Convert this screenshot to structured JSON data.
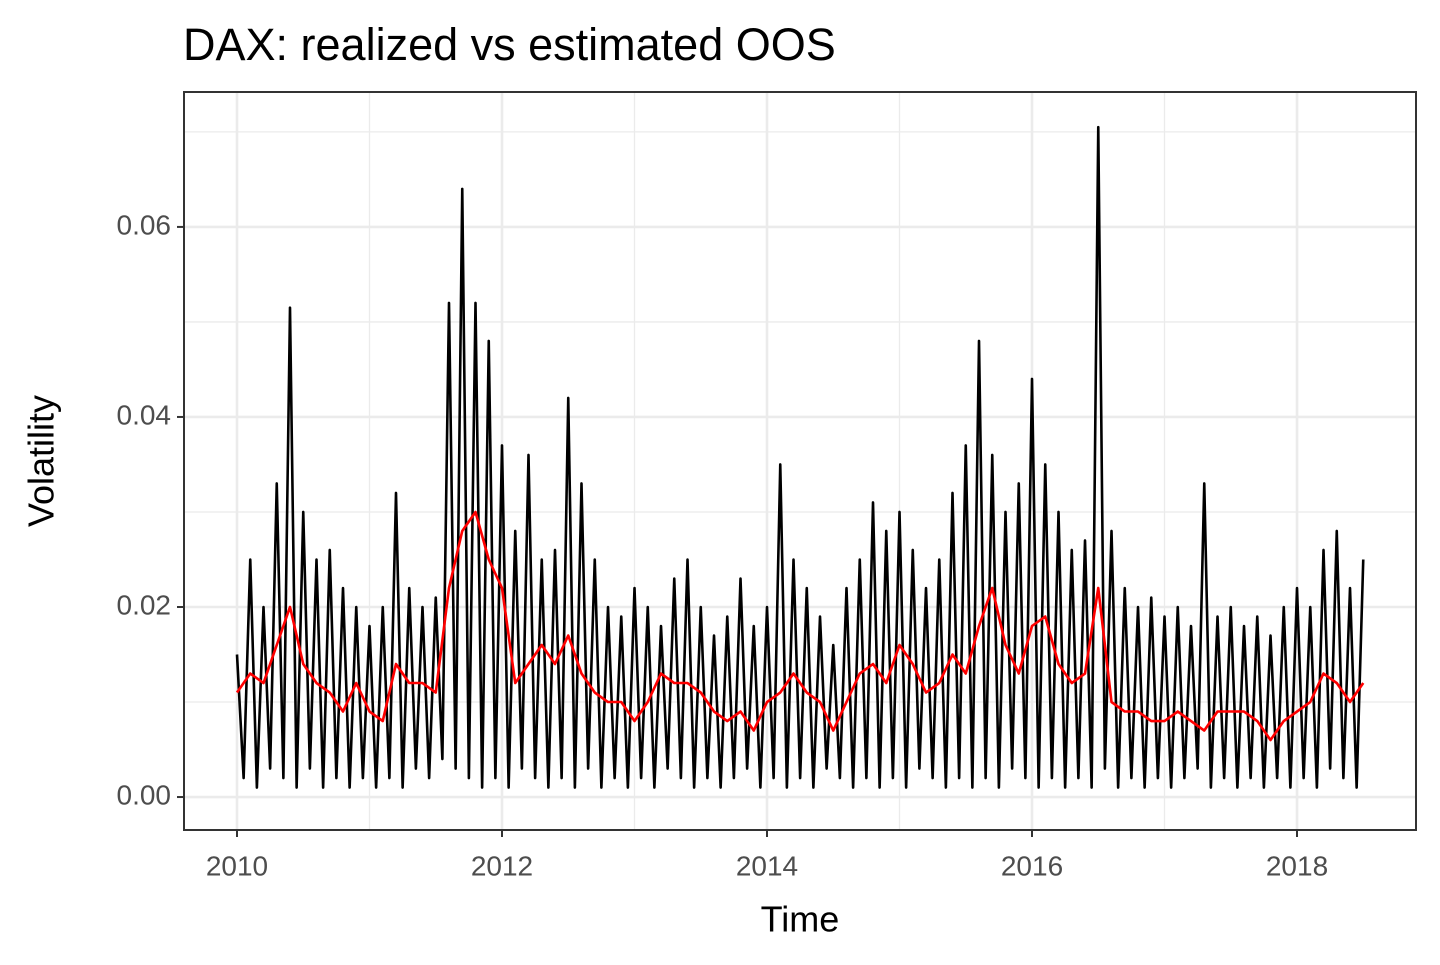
{
  "chart_data": {
    "type": "line",
    "title": "DAX: realized vs estimated OOS",
    "xlabel": "Time",
    "ylabel": "Volatility",
    "xlim": [
      2009.6,
      2018.898
    ],
    "ylim": [
      -0.00347,
      0.0742
    ],
    "xticks": [
      2010,
      2012,
      2014,
      2016,
      2018
    ],
    "yticks": [
      {
        "value": 0,
        "label": "0.00"
      },
      {
        "value": 0.02,
        "label": "0.02"
      },
      {
        "value": 0.04,
        "label": "0.04"
      },
      {
        "value": 0.06,
        "label": "0.06"
      }
    ],
    "xminorticks": [
      2011,
      2013,
      2015,
      2017
    ],
    "yminorticks": [
      0.01,
      0.03,
      0.05,
      0.07
    ],
    "grid": true,
    "series": [
      {
        "color": "#000000",
        "x": [
          2010,
          2010.05,
          2010.1,
          2010.15,
          2010.2,
          2010.25,
          2010.3,
          2010.35,
          2010.4,
          2010.45,
          2010.5,
          2010.55,
          2010.6,
          2010.65,
          2010.7,
          2010.75,
          2010.8,
          2010.85,
          2010.9,
          2010.95,
          2011,
          2011.05,
          2011.1,
          2011.15,
          2011.2,
          2011.25,
          2011.3,
          2011.35,
          2011.4,
          2011.45,
          2011.5,
          2011.55,
          2011.6,
          2011.65,
          2011.7,
          2011.75,
          2011.8,
          2011.85,
          2011.9,
          2011.95,
          2012,
          2012.05,
          2012.1,
          2012.15,
          2012.2,
          2012.25,
          2012.3,
          2012.35,
          2012.4,
          2012.45,
          2012.5,
          2012.55,
          2012.6,
          2012.65,
          2012.7,
          2012.75,
          2012.8,
          2012.85,
          2012.9,
          2012.95,
          2013,
          2013.05,
          2013.1,
          2013.15,
          2013.2,
          2013.25,
          2013.3,
          2013.35,
          2013.4,
          2013.45,
          2013.5,
          2013.55,
          2013.6,
          2013.65,
          2013.7,
          2013.75,
          2013.8,
          2013.85,
          2013.9,
          2013.95,
          2014,
          2014.05,
          2014.1,
          2014.15,
          2014.2,
          2014.25,
          2014.3,
          2014.35,
          2014.4,
          2014.45,
          2014.5,
          2014.55,
          2014.6,
          2014.65,
          2014.7,
          2014.75,
          2014.8,
          2014.85,
          2014.9,
          2014.95,
          2015,
          2015.05,
          2015.1,
          2015.15,
          2015.2,
          2015.25,
          2015.3,
          2015.35,
          2015.4,
          2015.45,
          2015.5,
          2015.55,
          2015.6,
          2015.65,
          2015.7,
          2015.75,
          2015.8,
          2015.85,
          2015.9,
          2015.95,
          2016,
          2016.05,
          2016.1,
          2016.15,
          2016.2,
          2016.25,
          2016.3,
          2016.35,
          2016.4,
          2016.45,
          2016.5,
          2016.55,
          2016.6,
          2016.65,
          2016.7,
          2016.75,
          2016.8,
          2016.85,
          2016.9,
          2016.95,
          2017,
          2017.05,
          2017.1,
          2017.15,
          2017.2,
          2017.25,
          2017.3,
          2017.35,
          2017.4,
          2017.45,
          2017.5,
          2017.55,
          2017.6,
          2017.65,
          2017.7,
          2017.75,
          2017.8,
          2017.85,
          2017.9,
          2017.95,
          2018,
          2018.05,
          2018.1,
          2018.15,
          2018.2,
          2018.25,
          2018.3,
          2018.35,
          2018.4,
          2018.45,
          2018.5
        ],
        "values": [
          0.015,
          0.002,
          0.025,
          0.001,
          0.02,
          0.003,
          0.033,
          0.002,
          0.0515,
          0.001,
          0.03,
          0.003,
          0.025,
          0.001,
          0.026,
          0.002,
          0.022,
          0.001,
          0.02,
          0.002,
          0.018,
          0.001,
          0.02,
          0.002,
          0.032,
          0.001,
          0.022,
          0.003,
          0.02,
          0.002,
          0.021,
          0.004,
          0.052,
          0.003,
          0.064,
          0.002,
          0.052,
          0.001,
          0.048,
          0.002,
          0.037,
          0.001,
          0.028,
          0.003,
          0.036,
          0.002,
          0.025,
          0.001,
          0.026,
          0.002,
          0.042,
          0.001,
          0.033,
          0.003,
          0.025,
          0.001,
          0.02,
          0.002,
          0.019,
          0.001,
          0.022,
          0.002,
          0.02,
          0.001,
          0.018,
          0.003,
          0.023,
          0.002,
          0.025,
          0.001,
          0.02,
          0.002,
          0.017,
          0.001,
          0.019,
          0.002,
          0.023,
          0.003,
          0.018,
          0.001,
          0.02,
          0.002,
          0.035,
          0.001,
          0.025,
          0.002,
          0.022,
          0.001,
          0.019,
          0.003,
          0.016,
          0.002,
          0.022,
          0.001,
          0.025,
          0.002,
          0.031,
          0.001,
          0.028,
          0.002,
          0.03,
          0.001,
          0.026,
          0.003,
          0.022,
          0.002,
          0.025,
          0.001,
          0.032,
          0.002,
          0.037,
          0.001,
          0.048,
          0.002,
          0.036,
          0.001,
          0.03,
          0.003,
          0.033,
          0.002,
          0.044,
          0.001,
          0.035,
          0.002,
          0.03,
          0.001,
          0.026,
          0.002,
          0.027,
          0.001,
          0.0705,
          0.003,
          0.028,
          0.001,
          0.022,
          0.002,
          0.02,
          0.001,
          0.021,
          0.002,
          0.019,
          0.001,
          0.02,
          0.002,
          0.018,
          0.003,
          0.033,
          0.001,
          0.019,
          0.002,
          0.02,
          0.001,
          0.018,
          0.002,
          0.019,
          0.001,
          0.017,
          0.002,
          0.02,
          0.001,
          0.022,
          0.002,
          0.02,
          0.001,
          0.026,
          0.003,
          0.028,
          0.002,
          0.022,
          0.001,
          0.025
        ]
      },
      {
        "color": "#ff0000",
        "x": [
          2010,
          2010.1,
          2010.2,
          2010.3,
          2010.4,
          2010.5,
          2010.6,
          2010.7,
          2010.8,
          2010.9,
          2011,
          2011.1,
          2011.2,
          2011.3,
          2011.4,
          2011.5,
          2011.6,
          2011.7,
          2011.8,
          2011.9,
          2012,
          2012.1,
          2012.2,
          2012.3,
          2012.4,
          2012.5,
          2012.6,
          2012.7,
          2012.8,
          2012.9,
          2013,
          2013.1,
          2013.2,
          2013.3,
          2013.4,
          2013.5,
          2013.6,
          2013.7,
          2013.8,
          2013.9,
          2014,
          2014.1,
          2014.2,
          2014.3,
          2014.4,
          2014.5,
          2014.6,
          2014.7,
          2014.8,
          2014.9,
          2015,
          2015.1,
          2015.2,
          2015.3,
          2015.4,
          2015.5,
          2015.6,
          2015.7,
          2015.8,
          2015.9,
          2016,
          2016.1,
          2016.2,
          2016.3,
          2016.4,
          2016.5,
          2016.6,
          2016.7,
          2016.8,
          2016.9,
          2017,
          2017.1,
          2017.2,
          2017.3,
          2017.4,
          2017.5,
          2017.6,
          2017.7,
          2017.8,
          2017.9,
          2018,
          2018.1,
          2018.2,
          2018.3,
          2018.4,
          2018.5
        ],
        "values": [
          0.011,
          0.013,
          0.012,
          0.016,
          0.02,
          0.014,
          0.012,
          0.011,
          0.009,
          0.012,
          0.009,
          0.008,
          0.014,
          0.012,
          0.012,
          0.011,
          0.022,
          0.028,
          0.03,
          0.025,
          0.022,
          0.012,
          0.014,
          0.016,
          0.014,
          0.017,
          0.013,
          0.011,
          0.01,
          0.01,
          0.008,
          0.01,
          0.013,
          0.012,
          0.012,
          0.011,
          0.009,
          0.008,
          0.009,
          0.007,
          0.01,
          0.011,
          0.013,
          0.011,
          0.01,
          0.007,
          0.01,
          0.013,
          0.014,
          0.012,
          0.016,
          0.014,
          0.011,
          0.012,
          0.015,
          0.013,
          0.018,
          0.022,
          0.016,
          0.013,
          0.018,
          0.019,
          0.014,
          0.012,
          0.013,
          0.022,
          0.01,
          0.009,
          0.009,
          0.008,
          0.008,
          0.009,
          0.008,
          0.007,
          0.009,
          0.009,
          0.009,
          0.008,
          0.006,
          0.008,
          0.009,
          0.01,
          0.013,
          0.012,
          0.01,
          0.012
        ]
      }
    ]
  }
}
